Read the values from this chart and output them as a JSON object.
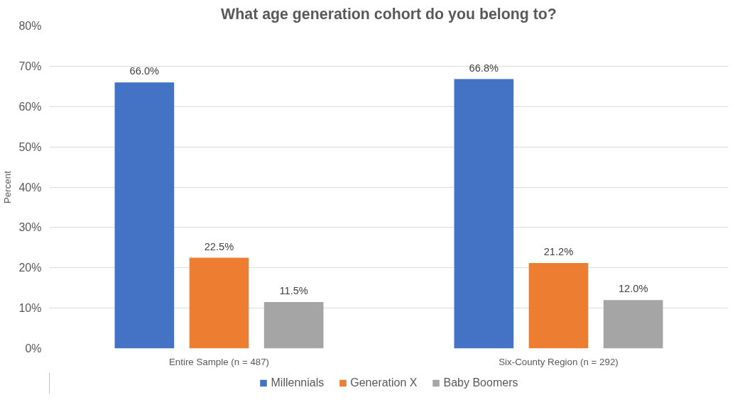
{
  "chart_data": {
    "type": "bar",
    "title": "What age generation cohort do you belong to?",
    "ylabel": "Percent",
    "categories": [
      "Entire Sample (n = 487)",
      "Six-County Region (n = 292)"
    ],
    "series": [
      {
        "name": "Millennials",
        "color": "#4472c4",
        "values": [
          66.0,
          66.8
        ],
        "value_labels": [
          "66.0%",
          "66.8%"
        ]
      },
      {
        "name": "Generation X",
        "color": "#ed7d31",
        "values": [
          22.5,
          21.2
        ],
        "value_labels": [
          "22.5%",
          "21.2%"
        ]
      },
      {
        "name": "Baby Boomers",
        "color": "#a5a5a5",
        "values": [
          11.5,
          12.0
        ],
        "value_labels": [
          "11.5%",
          "12.0%"
        ]
      }
    ],
    "ylim": [
      0,
      80
    ],
    "yticks": [
      {
        "value": 0,
        "label": "0%"
      },
      {
        "value": 10,
        "label": "10%"
      },
      {
        "value": 20,
        "label": "20%"
      },
      {
        "value": 30,
        "label": "30%"
      },
      {
        "value": 40,
        "label": "40%"
      },
      {
        "value": 50,
        "label": "50%"
      },
      {
        "value": 60,
        "label": "60%"
      },
      {
        "value": 70,
        "label": "70%"
      },
      {
        "value": 80,
        "label": "80%"
      }
    ],
    "grid": "y",
    "legend": "bottom"
  }
}
